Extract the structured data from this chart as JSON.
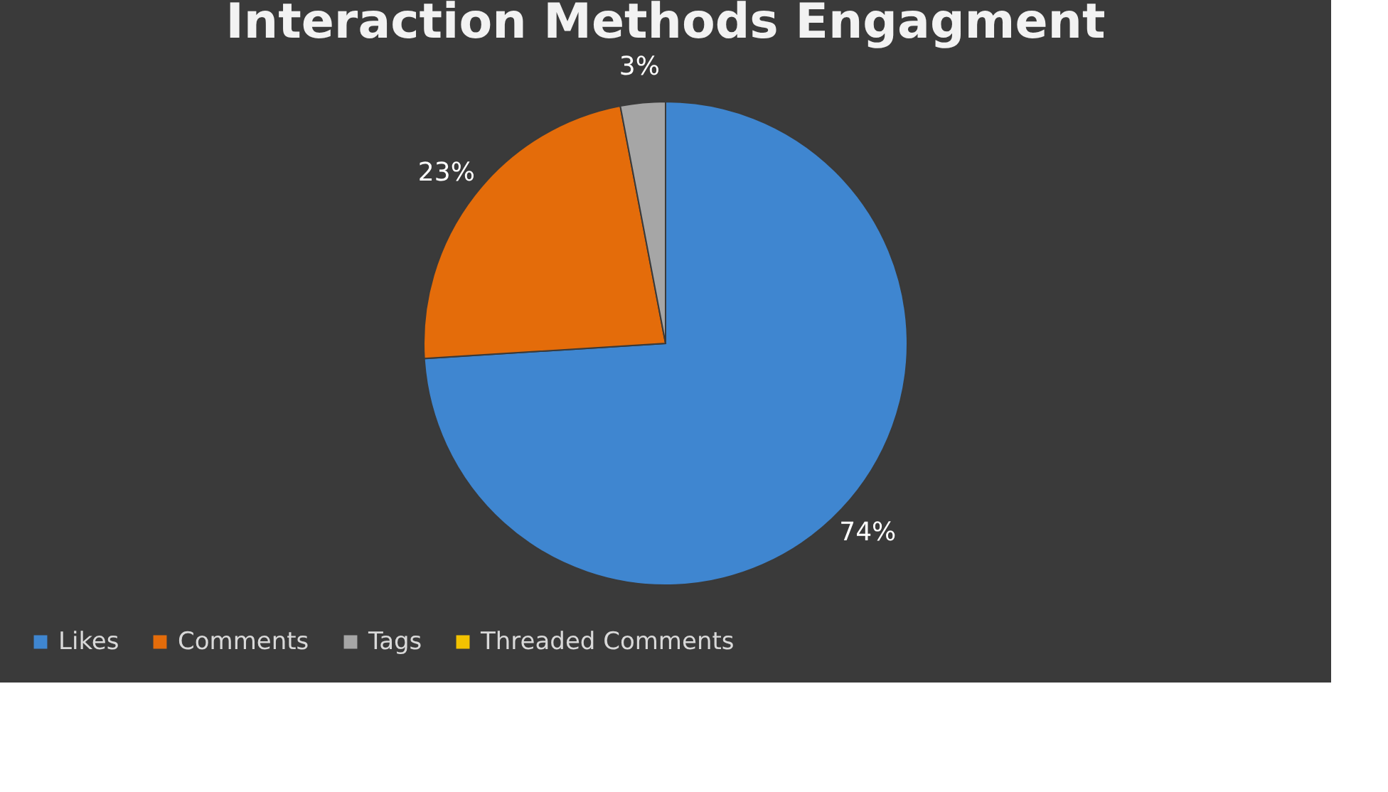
{
  "chart_data": {
    "type": "pie",
    "title": "Interaction Methods Engagment",
    "categories": [
      "Likes",
      "Comments",
      "Tags",
      "Threaded Comments"
    ],
    "values": [
      74,
      23,
      3,
      0
    ],
    "colors": [
      "#3f86d0",
      "#e46c0a",
      "#a6a6a6",
      "#f2c200"
    ],
    "value_labels": [
      "74%",
      "23%",
      "3%",
      null
    ],
    "legend": "bottom"
  }
}
